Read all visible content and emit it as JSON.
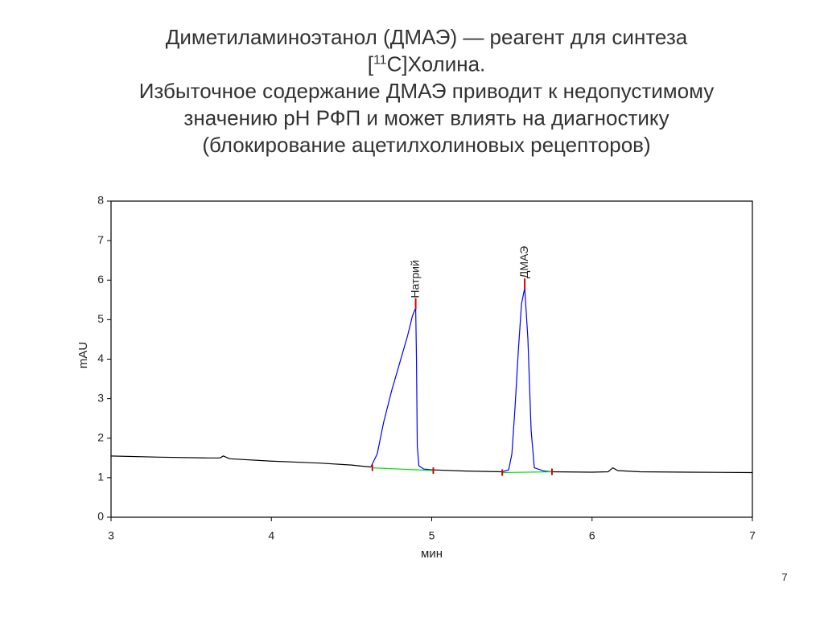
{
  "slide": {
    "title_lines": [
      "Диметиламиноэтанол (ДМАЭ) — реагент для синтеза",
      {
        "before": "[",
        "sup": "11",
        "after": "С]Холина."
      },
      "Избыточное содержание ДМАЭ приводит к недопустимому",
      "значению pH РФП и может влиять на диагностику",
      "(блокирование ацетилхолиновых рецепторов)"
    ],
    "page_number": "7"
  },
  "chart_data": {
    "type": "line",
    "x_label": "мин",
    "y_label": "mAU",
    "xlim": [
      3,
      7
    ],
    "ylim": [
      0,
      8
    ],
    "xticks": [
      3,
      4,
      5,
      6,
      7
    ],
    "yticks": [
      0,
      1,
      2,
      3,
      4,
      5,
      6,
      7,
      8
    ],
    "series": [
      {
        "color": "#000000",
        "x": [
          3,
          3.3,
          3.6,
          3.68,
          3.7,
          3.74,
          4.0,
          4.3,
          4.5,
          4.62,
          4.8,
          5.0,
          5.2,
          5.44,
          5.5,
          5.75,
          6.0,
          6.1,
          6.13,
          6.16,
          6.3,
          6.6,
          7.0
        ],
        "values": [
          1.55,
          1.52,
          1.5,
          1.5,
          1.55,
          1.48,
          1.42,
          1.37,
          1.32,
          1.27,
          null,
          1.2,
          1.17,
          1.15,
          null,
          1.15,
          1.14,
          1.15,
          1.25,
          1.18,
          1.15,
          1.14,
          1.13
        ]
      },
      {
        "color": "#0000ff",
        "x": [
          4.62,
          4.66,
          4.7,
          4.75,
          4.8,
          4.85,
          4.88,
          4.9,
          4.905,
          4.91,
          4.92,
          4.95,
          5.0,
          5.2,
          5.44,
          5.48,
          5.5,
          5.52,
          5.54,
          5.56,
          5.58,
          5.6,
          5.62,
          5.64,
          5.7,
          5.75
        ],
        "values": [
          1.27,
          1.6,
          2.4,
          3.2,
          3.9,
          4.6,
          5.1,
          5.3,
          4.0,
          1.8,
          1.3,
          1.22,
          1.2,
          null,
          1.15,
          1.2,
          1.6,
          2.8,
          4.2,
          5.4,
          5.8,
          4.5,
          2.2,
          1.25,
          1.17,
          1.15
        ]
      },
      {
        "color": "#00dd00",
        "marker_color": "#dd0000",
        "x": [
          4.63,
          5.01,
          5.2,
          5.44,
          5.75
        ],
        "values": [
          1.25,
          1.18,
          null,
          1.13,
          1.15
        ]
      }
    ],
    "annotations": [
      {
        "text": "Натрий",
        "x": 4.9,
        "y": 5.3
      },
      {
        "text": "ДМАЭ",
        "x": 5.58,
        "y": 5.8
      }
    ]
  }
}
